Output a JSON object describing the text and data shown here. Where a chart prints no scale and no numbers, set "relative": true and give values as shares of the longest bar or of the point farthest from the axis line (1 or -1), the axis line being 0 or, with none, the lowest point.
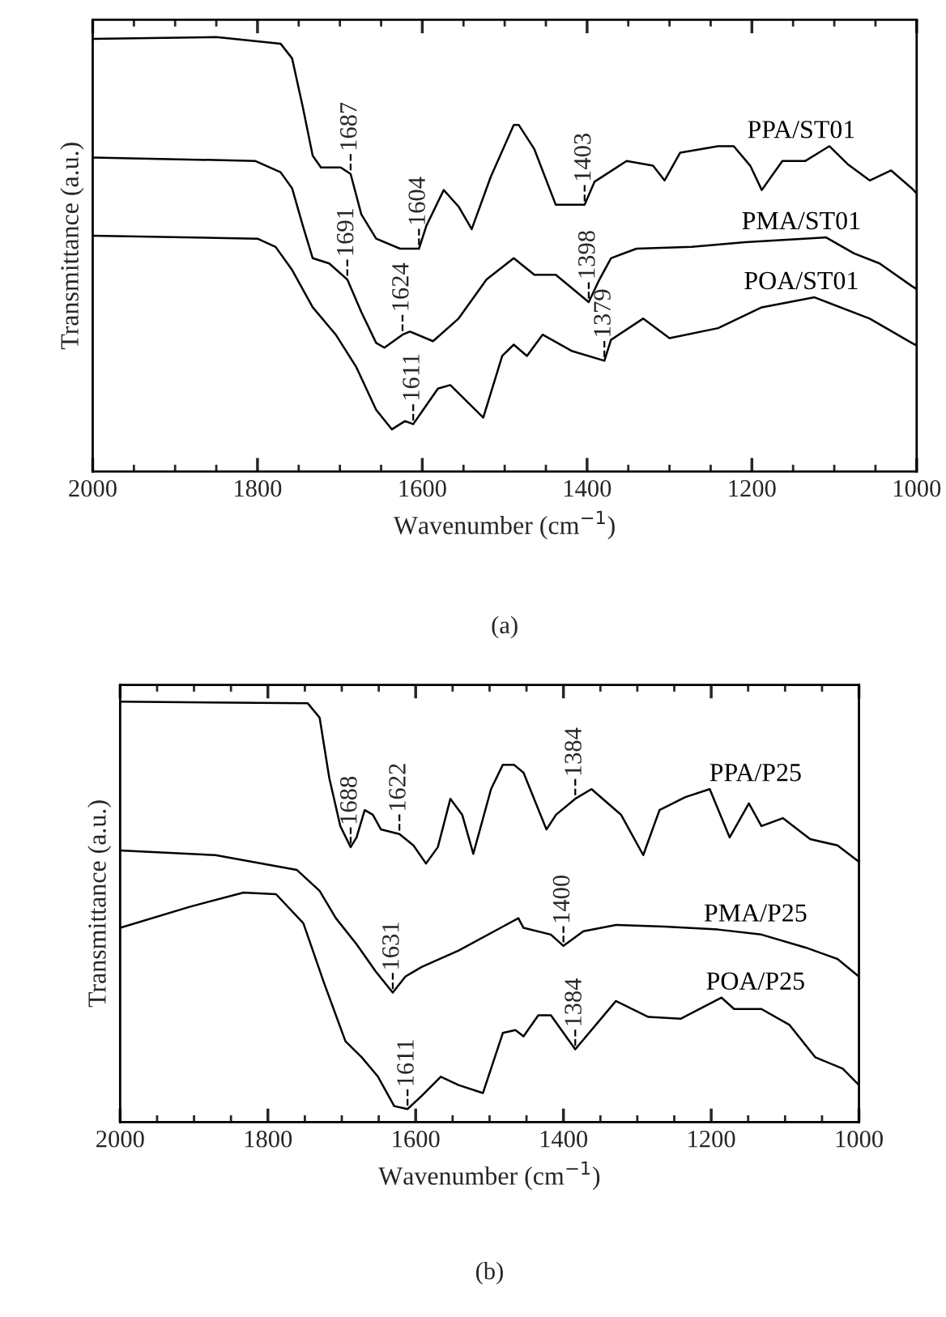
{
  "chart_data": [
    {
      "type": "line",
      "relative": true,
      "xlabel": "Wavenumber (cm$^{−1}$)",
      "ylabel": "Transmittance (a.u.)",
      "xlim": [
        2000,
        1000
      ],
      "xticks": [
        2000,
        1800,
        1600,
        1400,
        1200,
        1000
      ],
      "tick_labels": "x",
      "legend": false,
      "grid": false,
      "series": [
        {
          "name": "PPA/ST01",
          "color": "#000000",
          "x": [
            2000,
            1850,
            1772,
            1758,
            1745,
            1733,
            1723,
            1699,
            1687,
            1674,
            1656,
            1627,
            1604,
            1595,
            1574,
            1556,
            1540,
            1517,
            1489,
            1483,
            1464,
            1438,
            1403,
            1391,
            1352,
            1320,
            1306,
            1287,
            1241,
            1222,
            1202,
            1188,
            1163,
            1135,
            1106,
            1084,
            1057,
            1031,
            1006,
            1000
          ],
          "values": [
            0.996,
            1.0,
            0.985,
            0.951,
            0.839,
            0.727,
            0.7,
            0.7,
            0.685,
            0.592,
            0.536,
            0.513,
            0.513,
            0.566,
            0.648,
            0.61,
            0.558,
            0.678,
            0.798,
            0.798,
            0.742,
            0.614,
            0.614,
            0.667,
            0.715,
            0.704,
            0.67,
            0.734,
            0.749,
            0.749,
            0.704,
            0.648,
            0.715,
            0.715,
            0.749,
            0.708,
            0.67,
            0.693,
            0.652,
            0.64
          ]
        },
        {
          "name": "PMA/ST01",
          "color": "#000000",
          "x": [
            2000,
            1803,
            1772,
            1758,
            1745,
            1733,
            1713,
            1691,
            1674,
            1656,
            1646,
            1624,
            1615,
            1587,
            1556,
            1522,
            1489,
            1464,
            1438,
            1398,
            1385,
            1371,
            1340,
            1273,
            1208,
            1110,
            1076,
            1045,
            1006,
            1000
          ],
          "values": [
            0.723,
            0.715,
            0.689,
            0.652,
            0.566,
            0.491,
            0.479,
            0.442,
            0.367,
            0.296,
            0.285,
            0.315,
            0.322,
            0.3,
            0.352,
            0.442,
            0.491,
            0.453,
            0.453,
            0.39,
            0.442,
            0.491,
            0.513,
            0.517,
            0.528,
            0.539,
            0.502,
            0.479,
            0.427,
            0.42
          ]
        },
        {
          "name": "POA/ST01",
          "color": "#000000",
          "x": [
            2000,
            1800,
            1778,
            1758,
            1733,
            1705,
            1680,
            1656,
            1637,
            1621,
            1611,
            1581,
            1566,
            1526,
            1503,
            1489,
            1473,
            1454,
            1418,
            1379,
            1371,
            1332,
            1300,
            1241,
            1188,
            1124,
            1057,
            1006,
            1000
          ],
          "values": [
            0.543,
            0.536,
            0.517,
            0.464,
            0.378,
            0.315,
            0.24,
            0.142,
            0.097,
            0.116,
            0.109,
            0.191,
            0.199,
            0.124,
            0.266,
            0.292,
            0.266,
            0.315,
            0.277,
            0.255,
            0.303,
            0.352,
            0.307,
            0.33,
            0.378,
            0.401,
            0.352,
            0.296,
            0.29
          ]
        }
      ],
      "annotations": [
        {
          "text": "1687",
          "x": 1687,
          "y": 0.685
        },
        {
          "text": "1604",
          "x": 1604,
          "y": 0.513
        },
        {
          "text": "1403",
          "x": 1403,
          "y": 0.614
        },
        {
          "text": "1691",
          "x": 1691,
          "y": 0.442
        },
        {
          "text": "1624",
          "x": 1624,
          "y": 0.315
        },
        {
          "text": "1398",
          "x": 1398,
          "y": 0.39
        },
        {
          "text": "1611",
          "x": 1611,
          "y": 0.109
        },
        {
          "text": "1379",
          "x": 1379,
          "y": 0.255
        },
        "(a)"
      ]
    },
    {
      "type": "line",
      "relative": true,
      "xlabel": "Wavenumber (cm$^{−1}$)",
      "ylabel": "Transmittance (a.u.)",
      "xlim": [
        2000,
        1000
      ],
      "xticks": [
        2000,
        1800,
        1600,
        1400,
        1200,
        1000
      ],
      "tick_labels": "x",
      "legend": false,
      "grid": false,
      "series": [
        {
          "name": "PPA/P25",
          "color": "#000000",
          "x": [
            2000,
            1746,
            1730,
            1717,
            1702,
            1688,
            1680,
            1669,
            1658,
            1647,
            1622,
            1603,
            1586,
            1570,
            1553,
            1537,
            1522,
            1498,
            1482,
            1467,
            1454,
            1423,
            1410,
            1384,
            1362,
            1322,
            1292,
            1270,
            1235,
            1202,
            1175,
            1149,
            1132,
            1103,
            1066,
            1029,
            1000
          ],
          "values": [
            1.0,
            0.996,
            0.962,
            0.819,
            0.704,
            0.654,
            0.677,
            0.742,
            0.731,
            0.696,
            0.685,
            0.658,
            0.615,
            0.654,
            0.769,
            0.731,
            0.638,
            0.792,
            0.85,
            0.85,
            0.831,
            0.696,
            0.731,
            0.769,
            0.792,
            0.731,
            0.635,
            0.742,
            0.773,
            0.792,
            0.677,
            0.758,
            0.704,
            0.723,
            0.673,
            0.658,
            0.619
          ]
        },
        {
          "name": "PMA/P25",
          "color": "#000000",
          "x": [
            2000,
            1871,
            1761,
            1730,
            1708,
            1680,
            1654,
            1631,
            1614,
            1592,
            1542,
            1482,
            1461,
            1454,
            1417,
            1400,
            1373,
            1329,
            1263,
            1191,
            1132,
            1072,
            1029,
            1000
          ],
          "values": [
            0.646,
            0.635,
            0.6,
            0.55,
            0.485,
            0.423,
            0.358,
            0.308,
            0.346,
            0.369,
            0.408,
            0.465,
            0.485,
            0.462,
            0.446,
            0.419,
            0.454,
            0.469,
            0.465,
            0.458,
            0.446,
            0.415,
            0.388,
            0.346
          ]
        },
        {
          "name": "POA/P25",
          "color": "#000000",
          "x": [
            2000,
            1906,
            1833,
            1789,
            1752,
            1724,
            1695,
            1673,
            1651,
            1629,
            1611,
            1592,
            1566,
            1542,
            1509,
            1482,
            1465,
            1454,
            1434,
            1417,
            1384,
            1329,
            1285,
            1241,
            1186,
            1169,
            1132,
            1094,
            1059,
            1022,
            1000
          ],
          "values": [
            0.462,
            0.512,
            0.546,
            0.542,
            0.473,
            0.331,
            0.192,
            0.154,
            0.108,
            0.038,
            0.031,
            0.062,
            0.108,
            0.088,
            0.069,
            0.212,
            0.219,
            0.204,
            0.254,
            0.254,
            0.173,
            0.288,
            0.25,
            0.246,
            0.296,
            0.269,
            0.269,
            0.231,
            0.154,
            0.127,
            0.088
          ]
        }
      ],
      "annotations": [
        {
          "text": "1688",
          "x": 1688,
          "y": 0.654
        },
        {
          "text": "1622",
          "x": 1622,
          "y": 0.685
        },
        {
          "text": "1384",
          "x": 1384,
          "y": 0.769
        },
        {
          "text": "1631",
          "x": 1631,
          "y": 0.308
        },
        {
          "text": "1400",
          "x": 1400,
          "y": 0.419
        },
        {
          "text": "1611",
          "x": 1611,
          "y": 0.031
        },
        {
          "text": "1384",
          "x": 1384,
          "y": 0.173
        },
        "(b)"
      ]
    }
  ]
}
